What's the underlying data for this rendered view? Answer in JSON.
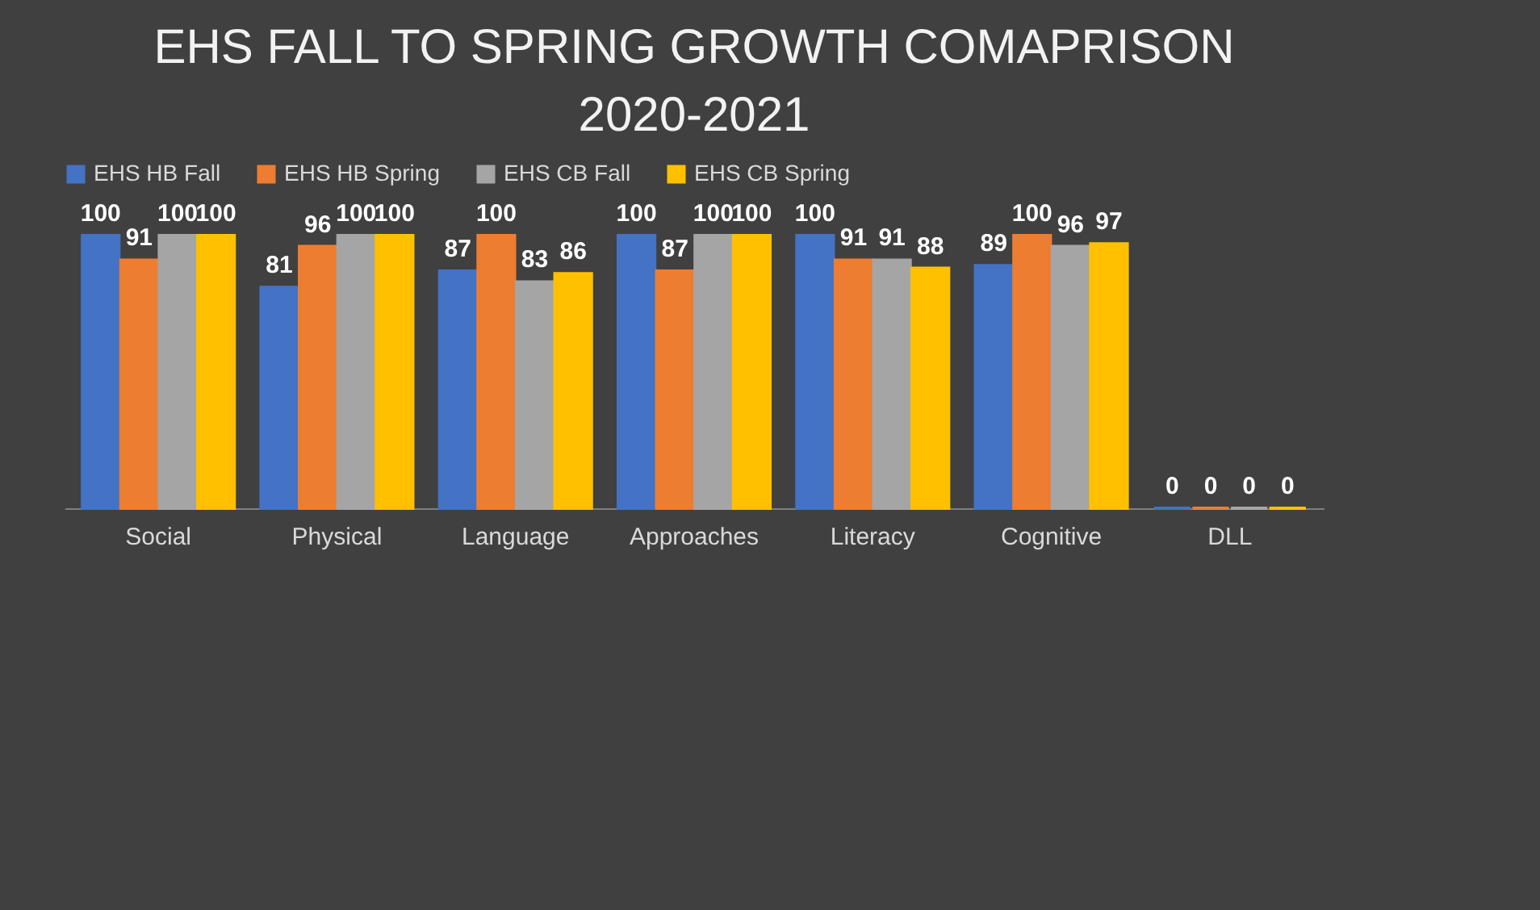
{
  "chart_data": {
    "type": "bar",
    "title": "EHS FALL TO SPRING GROWTH COMAPRISON 2020-2021",
    "categories": [
      "Social",
      "Physical",
      "Language",
      "Approaches",
      "Literacy",
      "Cognitive",
      "DLL"
    ],
    "series": [
      {
        "name": "EHS HB Fall",
        "color": "#4472c4",
        "values": [
          100,
          81,
          87,
          100,
          100,
          89,
          0
        ]
      },
      {
        "name": "EHS HB Spring",
        "color": "#ed7d31",
        "values": [
          91,
          96,
          100,
          87,
          91,
          100,
          0
        ]
      },
      {
        "name": "EHS CB Fall",
        "color": "#a5a5a5",
        "values": [
          100,
          100,
          83,
          100,
          91,
          96,
          0
        ]
      },
      {
        "name": "EHS CB Spring",
        "color": "#ffc000",
        "values": [
          100,
          100,
          86,
          100,
          88,
          97,
          0
        ]
      }
    ],
    "data_labels": true,
    "legend": "top",
    "grid": false,
    "tick_labels": "x"
  }
}
